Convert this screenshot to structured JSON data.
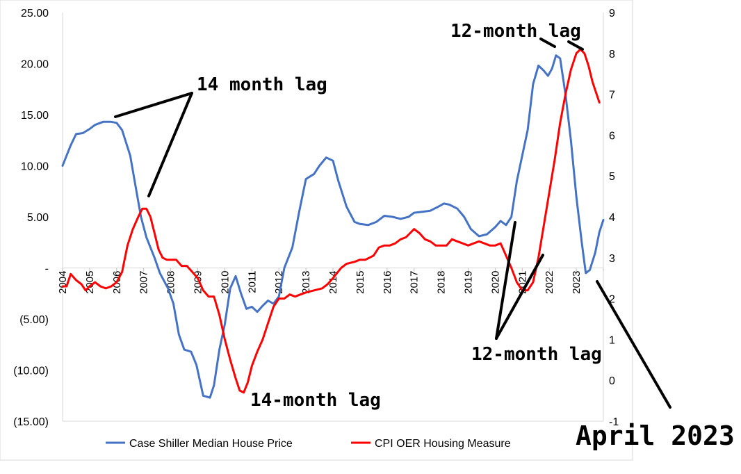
{
  "chart_data": {
    "type": "line",
    "title": "",
    "xlabel": "",
    "ylabel": "",
    "x_categories": [
      "2004",
      "2005",
      "2006",
      "2007",
      "2008",
      "2009",
      "2010",
      "2011",
      "2012",
      "2013",
      "2014",
      "2015",
      "2016",
      "2017",
      "2018",
      "2019",
      "2020",
      "2021",
      "2022",
      "2023"
    ],
    "y_left": {
      "range": [
        -15,
        25
      ],
      "ticks": [
        "25.00",
        "20.00",
        "15.00",
        "10.00",
        "5.00",
        "-",
        "(5.00)",
        "(10.00)",
        "(15.00)"
      ]
    },
    "y_right": {
      "range": [
        -1,
        9
      ],
      "ticks": [
        "9",
        "8",
        "7",
        "6",
        "5",
        "4",
        "3",
        "2",
        "1",
        "0",
        "-1"
      ]
    },
    "series": [
      {
        "name": "Case Shiller Median House Price",
        "axis": "left",
        "color": "#4472C4",
        "points": [
          [
            2004.0,
            10.0
          ],
          [
            2004.3,
            12.0
          ],
          [
            2004.5,
            13.1
          ],
          [
            2004.75,
            13.2
          ],
          [
            2005.0,
            13.6
          ],
          [
            2005.2,
            14.0
          ],
          [
            2005.5,
            14.3
          ],
          [
            2005.8,
            14.3
          ],
          [
            2006.0,
            14.2
          ],
          [
            2006.2,
            13.5
          ],
          [
            2006.5,
            11.0
          ],
          [
            2006.7,
            8.0
          ],
          [
            2006.9,
            5.0
          ],
          [
            2007.1,
            3.0
          ],
          [
            2007.4,
            1.0
          ],
          [
            2007.6,
            -0.5
          ],
          [
            2007.9,
            -2.0
          ],
          [
            2008.1,
            -3.5
          ],
          [
            2008.3,
            -6.5
          ],
          [
            2008.5,
            -8.0
          ],
          [
            2008.75,
            -8.2
          ],
          [
            2008.95,
            -9.5
          ],
          [
            2009.2,
            -12.5
          ],
          [
            2009.45,
            -12.7
          ],
          [
            2009.6,
            -11.5
          ],
          [
            2009.8,
            -8.0
          ],
          [
            2010.0,
            -5.5
          ],
          [
            2010.2,
            -2.0
          ],
          [
            2010.4,
            -0.8
          ],
          [
            2010.6,
            -2.5
          ],
          [
            2010.8,
            -4.0
          ],
          [
            2011.0,
            -3.8
          ],
          [
            2011.2,
            -4.3
          ],
          [
            2011.4,
            -3.7
          ],
          [
            2011.6,
            -3.2
          ],
          [
            2011.8,
            -3.5
          ],
          [
            2012.0,
            -2.8
          ],
          [
            2012.2,
            0.0
          ],
          [
            2012.5,
            2.0
          ],
          [
            2012.75,
            5.5
          ],
          [
            2013.0,
            8.7
          ],
          [
            2013.3,
            9.2
          ],
          [
            2013.5,
            10.0
          ],
          [
            2013.75,
            10.8
          ],
          [
            2014.0,
            10.5
          ],
          [
            2014.2,
            8.5
          ],
          [
            2014.5,
            6.0
          ],
          [
            2014.8,
            4.5
          ],
          [
            2015.0,
            4.3
          ],
          [
            2015.3,
            4.2
          ],
          [
            2015.6,
            4.5
          ],
          [
            2015.9,
            5.1
          ],
          [
            2016.2,
            5.0
          ],
          [
            2016.5,
            4.8
          ],
          [
            2016.8,
            5.0
          ],
          [
            2017.0,
            5.4
          ],
          [
            2017.3,
            5.5
          ],
          [
            2017.6,
            5.6
          ],
          [
            2017.9,
            6.0
          ],
          [
            2018.1,
            6.3
          ],
          [
            2018.3,
            6.2
          ],
          [
            2018.6,
            5.8
          ],
          [
            2018.85,
            5.0
          ],
          [
            2019.1,
            3.8
          ],
          [
            2019.4,
            3.1
          ],
          [
            2019.7,
            3.3
          ],
          [
            2020.0,
            4.0
          ],
          [
            2020.2,
            4.6
          ],
          [
            2020.4,
            4.2
          ],
          [
            2020.6,
            5.0
          ],
          [
            2020.8,
            8.5
          ],
          [
            2021.0,
            11.0
          ],
          [
            2021.2,
            13.5
          ],
          [
            2021.4,
            18.0
          ],
          [
            2021.6,
            19.8
          ],
          [
            2021.8,
            19.3
          ],
          [
            2021.95,
            18.8
          ],
          [
            2022.1,
            19.5
          ],
          [
            2022.25,
            20.8
          ],
          [
            2022.4,
            20.5
          ],
          [
            2022.6,
            17.0
          ],
          [
            2022.8,
            12.5
          ],
          [
            2023.0,
            7.0
          ],
          [
            2023.2,
            2.5
          ],
          [
            2023.35,
            -0.5
          ],
          [
            2023.5,
            -0.2
          ],
          [
            2023.7,
            1.5
          ],
          [
            2023.85,
            3.5
          ],
          [
            2024.0,
            4.7
          ]
        ]
      },
      {
        "name": "CPI OER Housing Measure",
        "axis": "right",
        "color": "#FF0000",
        "points": [
          [
            2004.0,
            2.3
          ],
          [
            2004.15,
            2.3
          ],
          [
            2004.3,
            2.6
          ],
          [
            2004.5,
            2.45
          ],
          [
            2004.7,
            2.35
          ],
          [
            2004.85,
            2.2
          ],
          [
            2005.0,
            2.3
          ],
          [
            2005.2,
            2.4
          ],
          [
            2005.4,
            2.3
          ],
          [
            2005.6,
            2.25
          ],
          [
            2005.8,
            2.3
          ],
          [
            2006.0,
            2.4
          ],
          [
            2006.2,
            2.65
          ],
          [
            2006.4,
            3.3
          ],
          [
            2006.6,
            3.7
          ],
          [
            2006.8,
            4.0
          ],
          [
            2006.95,
            4.2
          ],
          [
            2007.1,
            4.2
          ],
          [
            2007.25,
            4.0
          ],
          [
            2007.4,
            3.6
          ],
          [
            2007.55,
            3.2
          ],
          [
            2007.7,
            3.0
          ],
          [
            2007.85,
            2.95
          ],
          [
            2008.0,
            2.95
          ],
          [
            2008.2,
            2.95
          ],
          [
            2008.4,
            2.8
          ],
          [
            2008.6,
            2.8
          ],
          [
            2008.8,
            2.65
          ],
          [
            2009.0,
            2.5
          ],
          [
            2009.2,
            2.2
          ],
          [
            2009.4,
            2.05
          ],
          [
            2009.6,
            2.05
          ],
          [
            2009.8,
            1.6
          ],
          [
            2010.0,
            1.0
          ],
          [
            2010.2,
            0.5
          ],
          [
            2010.4,
            0.05
          ],
          [
            2010.55,
            -0.25
          ],
          [
            2010.7,
            -0.3
          ],
          [
            2010.85,
            -0.05
          ],
          [
            2011.0,
            0.35
          ],
          [
            2011.2,
            0.7
          ],
          [
            2011.4,
            1.0
          ],
          [
            2011.6,
            1.4
          ],
          [
            2011.8,
            1.8
          ],
          [
            2012.0,
            2.0
          ],
          [
            2012.2,
            2.0
          ],
          [
            2012.4,
            2.1
          ],
          [
            2012.6,
            2.05
          ],
          [
            2012.8,
            2.1
          ],
          [
            2013.0,
            2.15
          ],
          [
            2013.3,
            2.2
          ],
          [
            2013.6,
            2.25
          ],
          [
            2013.8,
            2.35
          ],
          [
            2014.0,
            2.5
          ],
          [
            2014.3,
            2.75
          ],
          [
            2014.5,
            2.85
          ],
          [
            2014.8,
            2.9
          ],
          [
            2015.0,
            2.95
          ],
          [
            2015.2,
            2.95
          ],
          [
            2015.5,
            3.05
          ],
          [
            2015.7,
            3.25
          ],
          [
            2015.9,
            3.3
          ],
          [
            2016.1,
            3.3
          ],
          [
            2016.3,
            3.35
          ],
          [
            2016.5,
            3.45
          ],
          [
            2016.7,
            3.5
          ],
          [
            2016.85,
            3.6
          ],
          [
            2017.0,
            3.7
          ],
          [
            2017.2,
            3.6
          ],
          [
            2017.4,
            3.45
          ],
          [
            2017.6,
            3.4
          ],
          [
            2017.8,
            3.3
          ],
          [
            2018.0,
            3.3
          ],
          [
            2018.2,
            3.3
          ],
          [
            2018.4,
            3.45
          ],
          [
            2018.6,
            3.4
          ],
          [
            2018.8,
            3.35
          ],
          [
            2019.0,
            3.3
          ],
          [
            2019.2,
            3.35
          ],
          [
            2019.4,
            3.4
          ],
          [
            2019.6,
            3.35
          ],
          [
            2019.8,
            3.3
          ],
          [
            2020.0,
            3.3
          ],
          [
            2020.2,
            3.35
          ],
          [
            2020.4,
            3.05
          ],
          [
            2020.6,
            2.75
          ],
          [
            2020.8,
            2.4
          ],
          [
            2021.0,
            2.2
          ],
          [
            2021.2,
            2.2
          ],
          [
            2021.4,
            2.4
          ],
          [
            2021.6,
            3.0
          ],
          [
            2021.8,
            3.8
          ],
          [
            2022.0,
            4.6
          ],
          [
            2022.2,
            5.4
          ],
          [
            2022.4,
            6.3
          ],
          [
            2022.6,
            7.0
          ],
          [
            2022.8,
            7.6
          ],
          [
            2023.0,
            8.0
          ],
          [
            2023.15,
            8.1
          ],
          [
            2023.3,
            8.0
          ],
          [
            2023.45,
            7.7
          ],
          [
            2023.6,
            7.3
          ],
          [
            2023.75,
            7.0
          ],
          [
            2023.85,
            6.8
          ]
        ]
      }
    ],
    "legend": {
      "position": "bottom"
    },
    "annotations": [
      {
        "text": "14 month lag"
      },
      {
        "text": "14-month lag"
      },
      {
        "text": "12-month lag",
        "id": "top"
      },
      {
        "text": "12-month lag",
        "id": "bottom"
      },
      {
        "text": "April 2023"
      }
    ]
  }
}
